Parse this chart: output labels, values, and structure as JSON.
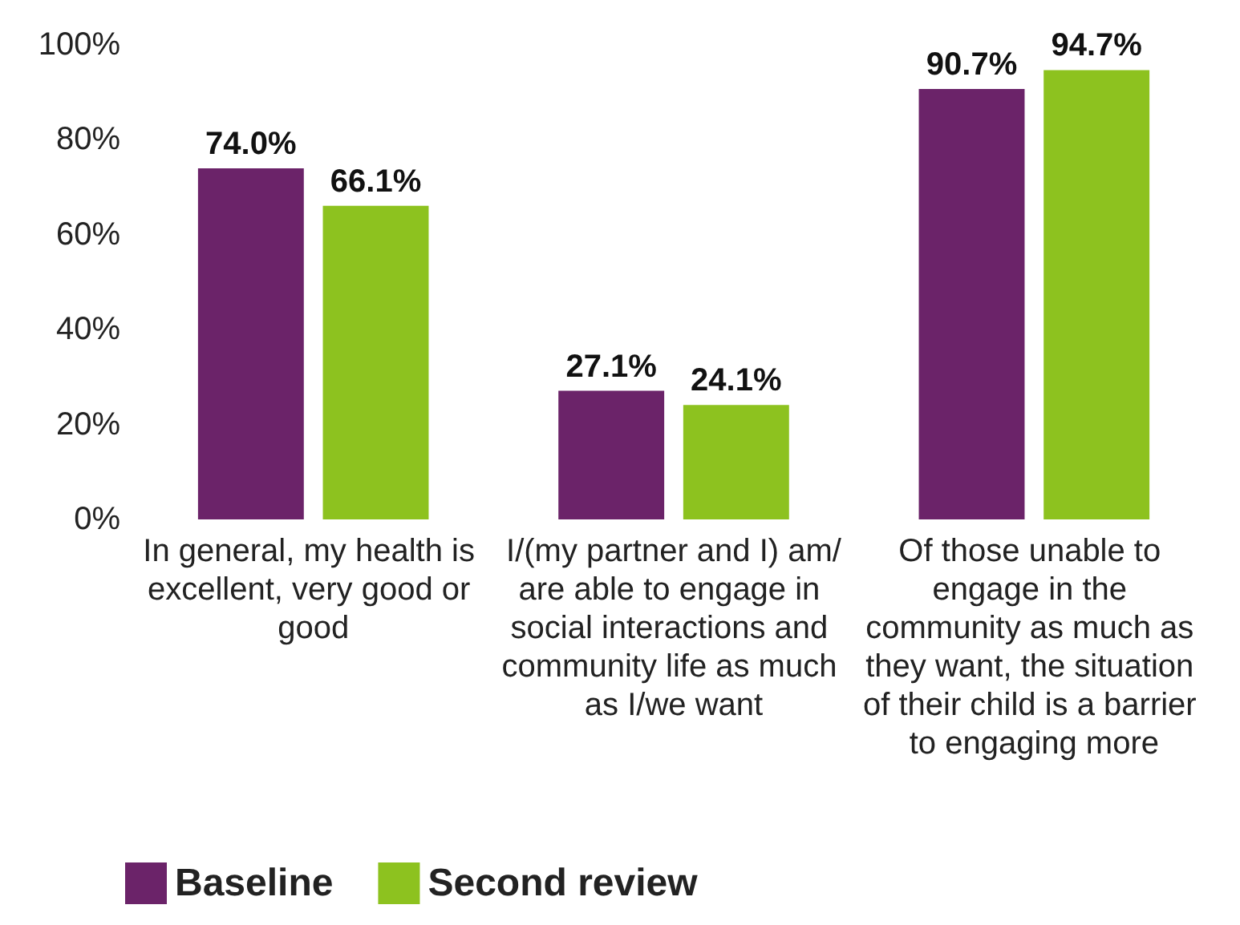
{
  "chart_data": {
    "type": "bar",
    "categories": [
      "In general, my health is excellent, very good or good",
      "I/(my partner and I) am/are able to engage in social interactions and community life as much as I/we want",
      "Of those unable to engage in the community as much as they want, the situation of their child is a barrier to engaging more"
    ],
    "series": [
      {
        "name": "Baseline",
        "color": "#6b2369",
        "values": [
          74.0,
          27.1,
          90.7
        ],
        "value_labels": [
          "74.0%",
          "27.1%",
          "90.7%"
        ]
      },
      {
        "name": "Second review",
        "color": "#8dc21f",
        "values": [
          66.1,
          24.1,
          94.7
        ],
        "value_labels": [
          "66.1%",
          "24.1%",
          "94.7%"
        ]
      }
    ],
    "ylim": [
      0,
      100
    ],
    "yticks": [
      {
        "value": 0,
        "label": "0%"
      },
      {
        "value": 20,
        "label": "20%"
      },
      {
        "value": 40,
        "label": "40%"
      },
      {
        "value": 60,
        "label": "60%"
      },
      {
        "value": 80,
        "label": "80%"
      },
      {
        "value": 100,
        "label": "100%"
      }
    ],
    "grid": false,
    "legend": "bottom left"
  }
}
